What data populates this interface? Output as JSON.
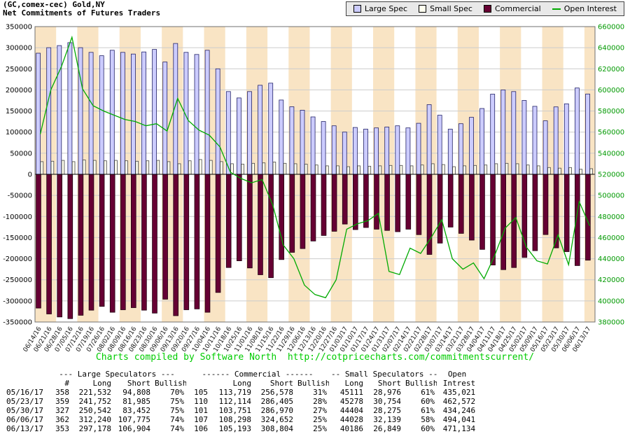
{
  "header": {
    "title_line1": "(GC,comex-cec) Gold,NY",
    "title_line2": "Net Commitments of Futures Traders"
  },
  "legend": {
    "items": [
      {
        "label": "Large Spec",
        "color": "#ccccff",
        "swatch": "square"
      },
      {
        "label": "Small Spec",
        "color": "#ffffee",
        "swatch": "square"
      },
      {
        "label": "Commercial",
        "color": "#660033",
        "swatch": "square"
      },
      {
        "label": "Open Interest",
        "color": "#00aa00",
        "swatch": "line"
      }
    ]
  },
  "chart_data": {
    "type": "bar",
    "title": "Net Commitments of Futures Traders",
    "subtitle": "(GC,comex-cec) Gold,NY",
    "grid": true,
    "legend_position": "top-right",
    "left_axis": {
      "min": -350000,
      "max": 350000,
      "step": 50000
    },
    "right_axis": {
      "min": 380000,
      "max": 660000,
      "step": 20000,
      "label": "Open Interest"
    },
    "colors": {
      "large_spec": "#ccccff",
      "large_spec_border": "#222266",
      "small_spec": "#ffffee",
      "commercial": "#660033",
      "open_interest": "#00aa00",
      "stripe": "#f9e4c4",
      "grid": "#cccccc",
      "right_axis_text": "#009900"
    },
    "categories": [
      "06/14/16",
      "06/21/16",
      "06/28/16",
      "07/05/16",
      "07/12/16",
      "07/19/16",
      "07/26/16",
      "08/02/16",
      "08/09/16",
      "08/16/16",
      "08/23/16",
      "08/30/16",
      "09/06/16",
      "09/13/16",
      "09/20/16",
      "09/27/16",
      "10/04/16",
      "10/11/16",
      "10/18/16",
      "10/25/16",
      "11/01/16",
      "11/08/16",
      "11/15/16",
      "11/22/16",
      "11/29/16",
      "12/06/16",
      "12/13/16",
      "12/20/16",
      "12/27/16",
      "01/03/17",
      "01/10/17",
      "01/17/17",
      "01/24/17",
      "01/31/17",
      "02/07/17",
      "02/14/17",
      "02/21/17",
      "02/28/17",
      "03/07/17",
      "03/14/17",
      "03/21/17",
      "03/28/17",
      "04/04/17",
      "04/11/17",
      "04/18/17",
      "04/25/17",
      "05/02/17",
      "05/09/17",
      "05/16/17",
      "05/23/17",
      "05/30/17",
      "06/06/17",
      "06/13/17"
    ],
    "series": [
      {
        "name": "Large Spec",
        "axis": "left",
        "values": [
          287000,
          300000,
          305000,
          312000,
          300000,
          289000,
          281000,
          294000,
          289000,
          285000,
          290000,
          296000,
          266000,
          310000,
          289000,
          284000,
          294000,
          250000,
          196000,
          181000,
          196000,
          211000,
          216000,
          176000,
          160000,
          152000,
          136000,
          125000,
          115000,
          100000,
          111000,
          107000,
          110000,
          112000,
          115000,
          110000,
          121000,
          165000,
          140000,
          107000,
          120000,
          135000,
          156000,
          190000,
          200000,
          196000,
          175000,
          161000,
          126724,
          159767,
          167090,
          204465,
          190274
        ]
      },
      {
        "name": "Small Spec",
        "axis": "left",
        "values": [
          30000,
          31000,
          33000,
          30000,
          34000,
          33000,
          32000,
          33000,
          32000,
          31000,
          32000,
          33000,
          30000,
          25000,
          32000,
          35000,
          33000,
          30000,
          25000,
          24000,
          26000,
          27000,
          29000,
          26000,
          25000,
          24000,
          22000,
          20000,
          20000,
          18000,
          20000,
          19000,
          20000,
          21000,
          21000,
          20000,
          22000,
          25000,
          23000,
          18000,
          20000,
          21000,
          22000,
          25000,
          26000,
          25000,
          22000,
          20000,
          16135,
          14524,
          16129,
          11889,
          13337
        ]
      },
      {
        "name": "Commercial",
        "axis": "left",
        "values": [
          -317000,
          -331000,
          -338000,
          -342000,
          -334000,
          -322000,
          -313000,
          -327000,
          -321000,
          -316000,
          -322000,
          -329000,
          -296000,
          -335000,
          -321000,
          -319000,
          -327000,
          -280000,
          -221000,
          -205000,
          -222000,
          -238000,
          -245000,
          -202000,
          -185000,
          -176000,
          -158000,
          -145000,
          -135000,
          -118000,
          -131000,
          -126000,
          -130000,
          -133000,
          -136000,
          -130000,
          -143000,
          -190000,
          -163000,
          -125000,
          -140000,
          -156000,
          -178000,
          -215000,
          -226000,
          -221000,
          -197000,
          -181000,
          -142859,
          -174291,
          -183219,
          -216354,
          -203611
        ]
      },
      {
        "name": "Open Interest",
        "axis": "right",
        "values": [
          558000,
          600000,
          622000,
          650000,
          601000,
          585000,
          580000,
          576000,
          572000,
          570000,
          566000,
          568000,
          561000,
          592000,
          571000,
          562000,
          557000,
          546000,
          522000,
          516000,
          512000,
          515000,
          491000,
          453000,
          440000,
          415000,
          406000,
          403000,
          420000,
          468000,
          473000,
          476000,
          483000,
          428000,
          425000,
          450000,
          445000,
          460000,
          477000,
          440000,
          430000,
          436000,
          421000,
          443000,
          469000,
          479000,
          451000,
          438000,
          435021,
          462572,
          434246,
          494041,
          471134
        ]
      }
    ]
  },
  "footer_note": "Charts compiled by Software North  http://cotpricecharts.com/commitmentscurrent/",
  "table": {
    "group_headers": [
      {
        "label": "",
        "span": 1
      },
      {
        "label": "--- Large Speculators ---",
        "span": 4
      },
      {
        "label": "------ Commercial ------",
        "span": 4
      },
      {
        "label": "-- Small Speculators --",
        "span": 3
      },
      {
        "label": "Open",
        "span": 1
      }
    ],
    "col_headers": [
      "",
      "#",
      "Long",
      "Short",
      "Bullish",
      "",
      "Long",
      "Short",
      "Bullish",
      "Long",
      "Short",
      "Bullish",
      "Intrest"
    ],
    "rows": [
      [
        "05/16/17",
        "358",
        "221,532",
        "94,808",
        "70%",
        "105",
        "113,719",
        "256,578",
        "31%",
        "45111",
        "28,976",
        "61%",
        "435,021"
      ],
      [
        "05/23/17",
        "359",
        "241,752",
        "81,985",
        "75%",
        "110",
        "112,114",
        "286,405",
        "28%",
        "45278",
        "30,754",
        "60%",
        "462,572"
      ],
      [
        "05/30/17",
        "327",
        "250,542",
        "83,452",
        "75%",
        "101",
        "103,751",
        "286,970",
        "27%",
        "44404",
        "28,275",
        "61%",
        "434,246"
      ],
      [
        "06/06/17",
        "362",
        "312,240",
        "107,775",
        "74%",
        "107",
        "108,298",
        "324,652",
        "25%",
        "44028",
        "32,139",
        "58%",
        "494,041"
      ],
      [
        "06/13/17",
        "353",
        "297,178",
        "106,904",
        "74%",
        "106",
        "105,193",
        "308,804",
        "25%",
        "40186",
        "26,849",
        "60%",
        "471,134"
      ]
    ]
  }
}
